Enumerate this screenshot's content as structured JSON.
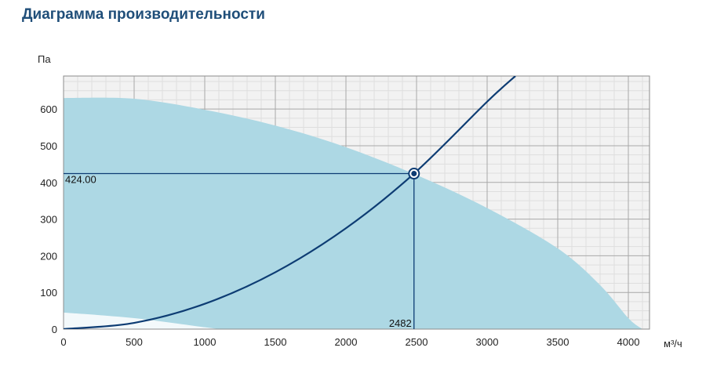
{
  "page": {
    "title": "Диаграмма производительности"
  },
  "colors": {
    "title": "#1f4e79",
    "curve": "#0d3c73",
    "envelope": "#add8e4",
    "grid": "#bcbcbc",
    "background": "#f2f2f2"
  },
  "chart_data": {
    "type": "area",
    "xunit": "м³/ч",
    "yunit": "Па",
    "xlim": [
      0,
      4150
    ],
    "ylim": [
      0,
      690
    ],
    "xticks": [
      0,
      500,
      1000,
      1500,
      2000,
      2500,
      3000,
      3500,
      4000
    ],
    "yticks": [
      0,
      100,
      200,
      300,
      400,
      500,
      600
    ],
    "grid": true,
    "envelope_upper": [
      {
        "x": 0,
        "y": 630
      },
      {
        "x": 500,
        "y": 628
      },
      {
        "x": 1000,
        "y": 598
      },
      {
        "x": 1500,
        "y": 555
      },
      {
        "x": 2000,
        "y": 496
      },
      {
        "x": 2500,
        "y": 420
      },
      {
        "x": 3000,
        "y": 330
      },
      {
        "x": 3500,
        "y": 220
      },
      {
        "x": 3800,
        "y": 120
      },
      {
        "x": 4000,
        "y": 30
      },
      {
        "x": 4100,
        "y": 0
      }
    ],
    "envelope_lower": [
      {
        "x": 0,
        "y": 45
      },
      {
        "x": 500,
        "y": 30
      },
      {
        "x": 1000,
        "y": 5
      },
      {
        "x": 1100,
        "y": 0
      }
    ],
    "system_curve": [
      {
        "x": 0,
        "y": 0
      },
      {
        "x": 500,
        "y": 17
      },
      {
        "x": 1000,
        "y": 69
      },
      {
        "x": 1500,
        "y": 155
      },
      {
        "x": 2000,
        "y": 275
      },
      {
        "x": 2482,
        "y": 424
      },
      {
        "x": 3000,
        "y": 620
      },
      {
        "x": 3200,
        "y": 690
      }
    ],
    "operating_point": {
      "x": 2482,
      "y": 424
    },
    "operating_point_labels": {
      "x": "2482",
      "y": "424.00"
    }
  }
}
